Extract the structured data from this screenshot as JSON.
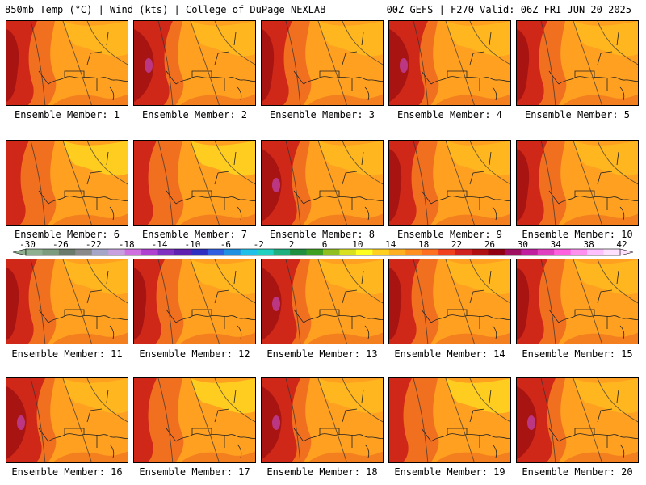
{
  "header": {
    "left": "850mb Temp (°C) | Wind (kts) | College of DuPage NEXLAB",
    "right": "00Z GEFS | F270 Valid: 06Z FRI JUN 20 2025"
  },
  "member_label_prefix": "Ensemble Member:",
  "members": [
    {
      "label": "Ensemble Member: 1",
      "level": 2
    },
    {
      "label": "Ensemble Member: 2",
      "level": 3
    },
    {
      "label": "Ensemble Member: 3",
      "level": 2
    },
    {
      "label": "Ensemble Member: 4",
      "level": 3
    },
    {
      "label": "Ensemble Member: 5",
      "level": 2
    },
    {
      "label": "Ensemble Member: 6",
      "level": 1
    },
    {
      "label": "Ensemble Member: 7",
      "level": 1
    },
    {
      "label": "Ensemble Member: 8",
      "level": 3
    },
    {
      "label": "Ensemble Member: 9",
      "level": 2
    },
    {
      "label": "Ensemble Member: 10",
      "level": 2
    },
    {
      "label": "Ensemble Member: 11",
      "level": 2
    },
    {
      "label": "Ensemble Member: 12",
      "level": 2
    },
    {
      "label": "Ensemble Member: 13",
      "level": 3
    },
    {
      "label": "Ensemble Member: 14",
      "level": 2
    },
    {
      "label": "Ensemble Member: 15",
      "level": 2
    },
    {
      "label": "Ensemble Member: 16",
      "level": 3
    },
    {
      "label": "Ensemble Member: 17",
      "level": 1
    },
    {
      "label": "Ensemble Member: 18",
      "level": 3
    },
    {
      "label": "Ensemble Member: 19",
      "level": 1
    },
    {
      "label": "Ensemble Member: 20",
      "level": 3
    }
  ],
  "colorbar": {
    "ticks": [
      "-30",
      "-26",
      "-22",
      "-18",
      "-14",
      "-10",
      "-6",
      "-2",
      "2",
      "6",
      "10",
      "14",
      "18",
      "22",
      "26",
      "30",
      "34",
      "38",
      "42"
    ],
    "colors": [
      "#8fb08f",
      "#7d9c7d",
      "#6b7b6b",
      "#8a8a8a",
      "#a6a6c8",
      "#c8a0e0",
      "#d070e0",
      "#b040d0",
      "#8030c0",
      "#6020b0",
      "#3030c0",
      "#3060e0",
      "#2090e0",
      "#20c0e8",
      "#20d0c0",
      "#20b080",
      "#209040",
      "#40a020",
      "#90c020",
      "#d8e020",
      "#ffff20",
      "#ffd020",
      "#ffb020",
      "#ff9020",
      "#ff7020",
      "#f04020",
      "#d02020",
      "#b01010",
      "#900010",
      "#a01060",
      "#c020a0",
      "#e040c0",
      "#ff60e0",
      "#ff90f0",
      "#ffc0ff",
      "#ffe0ff"
    ]
  },
  "field_colors": {
    "cool": "#ffd020",
    "base": "#ffa020",
    "warm": "#f07020",
    "hot": "#d02818",
    "hotter": "#a01010",
    "extreme": "#c040a0"
  }
}
